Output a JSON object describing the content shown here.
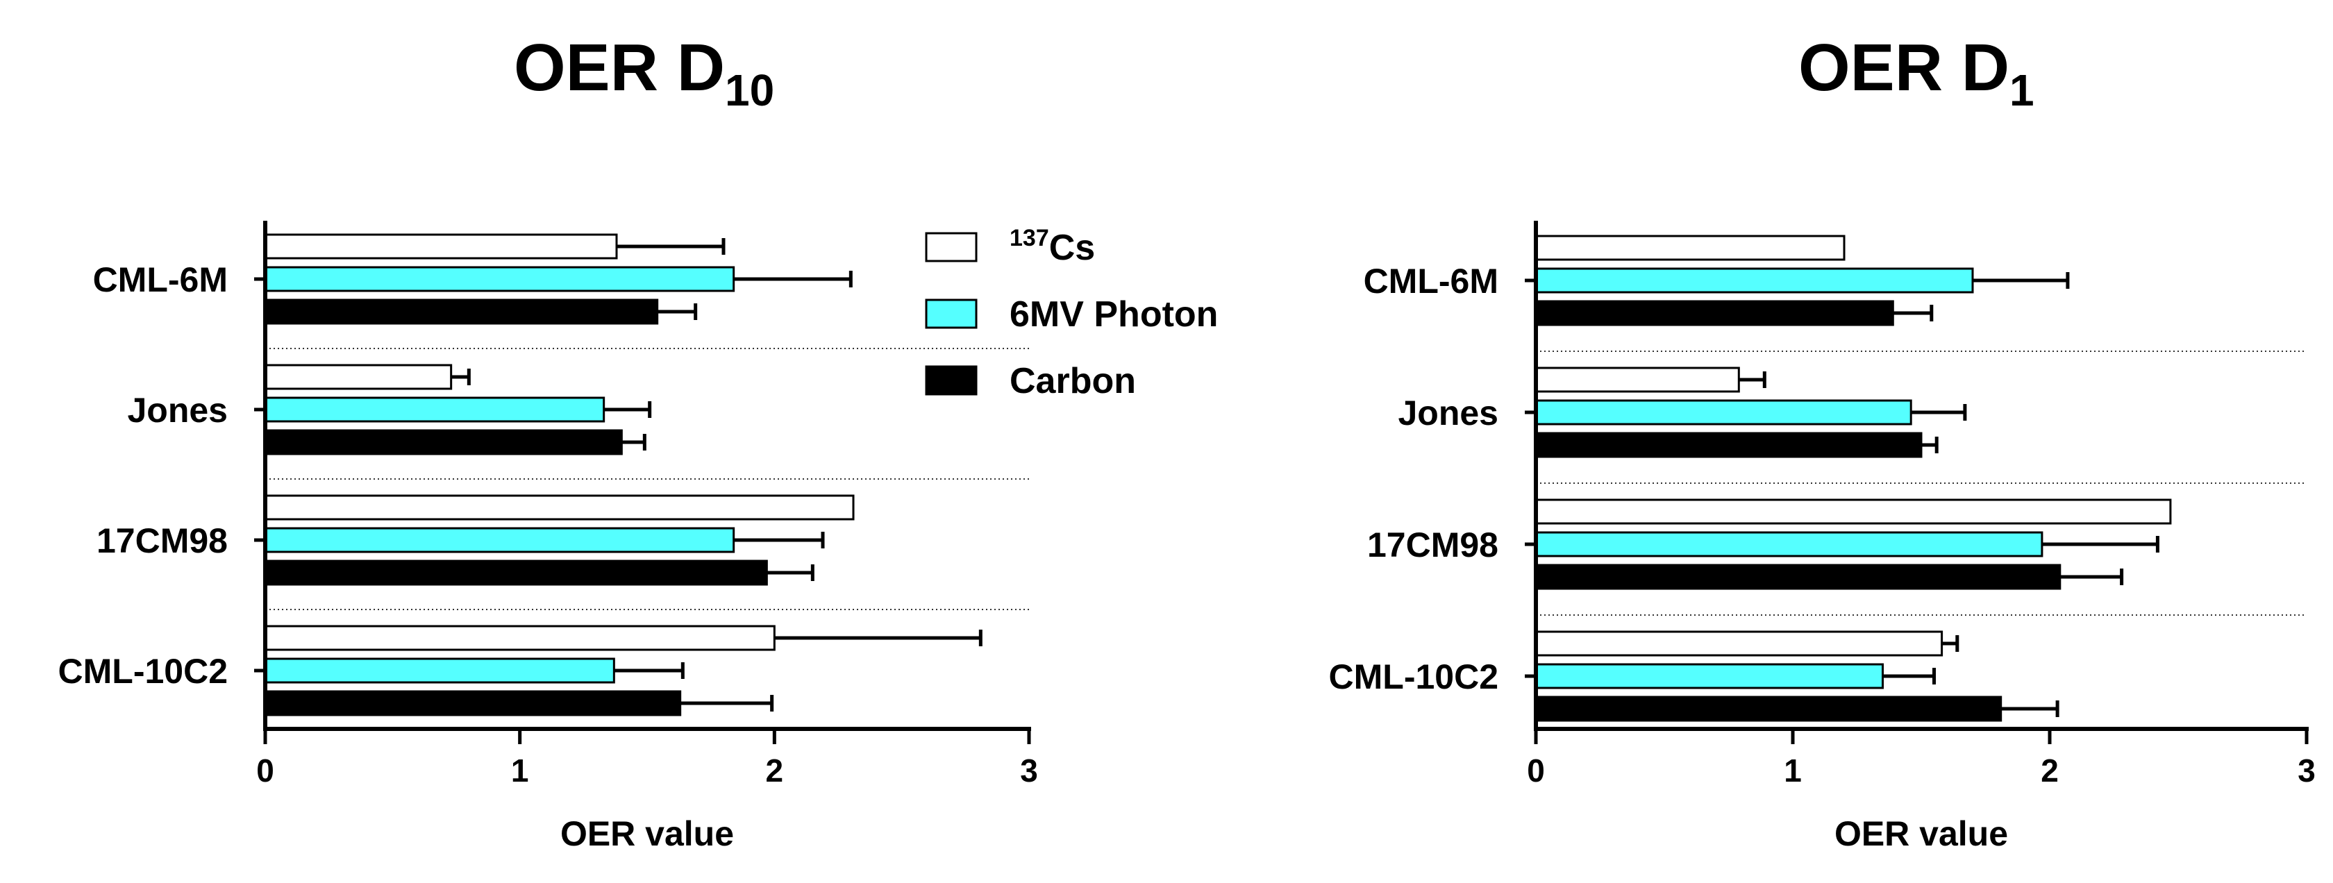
{
  "legend": {
    "items": [
      {
        "label": "Cs",
        "superscript": "137",
        "color": "#ffffff"
      },
      {
        "label": "6MV Photon",
        "color": "#55ffff"
      },
      {
        "label": "Carbon",
        "color": "#000000"
      }
    ]
  },
  "chart_data": [
    {
      "type": "bar",
      "orientation": "horizontal",
      "title": "OER D",
      "title_subscript": "10",
      "xlabel": "OER value",
      "ylabel": "",
      "xlim": [
        0,
        3
      ],
      "xticks": [
        0,
        1,
        2,
        3
      ],
      "categories": [
        "CML-6M",
        "Jones",
        "17CM98",
        "CML-10C2"
      ],
      "series": [
        {
          "name": "137Cs",
          "values": [
            1.38,
            0.73,
            2.31,
            2.0
          ],
          "errors": [
            0.42,
            0.07,
            0.0,
            0.81
          ]
        },
        {
          "name": "6MV Photon",
          "values": [
            1.84,
            1.33,
            1.84,
            1.37
          ],
          "errors": [
            0.46,
            0.18,
            0.35,
            0.27
          ]
        },
        {
          "name": "Carbon",
          "values": [
            1.54,
            1.4,
            1.97,
            1.63
          ],
          "errors": [
            0.15,
            0.09,
            0.18,
            0.36
          ]
        }
      ]
    },
    {
      "type": "bar",
      "orientation": "horizontal",
      "title": "OER D",
      "title_subscript": "1",
      "xlabel": "OER value",
      "ylabel": "",
      "xlim": [
        0,
        3
      ],
      "xticks": [
        0,
        1,
        2,
        3
      ],
      "categories": [
        "CML-6M",
        "Jones",
        "17CM98",
        "CML-10C2"
      ],
      "series": [
        {
          "name": "137Cs",
          "values": [
            1.2,
            0.79,
            2.47,
            1.58
          ],
          "errors": [
            0.0,
            0.1,
            0.0,
            0.06
          ]
        },
        {
          "name": "6MV Photon",
          "values": [
            1.7,
            1.46,
            1.97,
            1.35
          ],
          "errors": [
            0.37,
            0.21,
            0.45,
            0.2
          ]
        },
        {
          "name": "Carbon",
          "values": [
            1.39,
            1.5,
            2.04,
            1.81
          ],
          "errors": [
            0.15,
            0.06,
            0.24,
            0.22
          ]
        }
      ]
    }
  ]
}
